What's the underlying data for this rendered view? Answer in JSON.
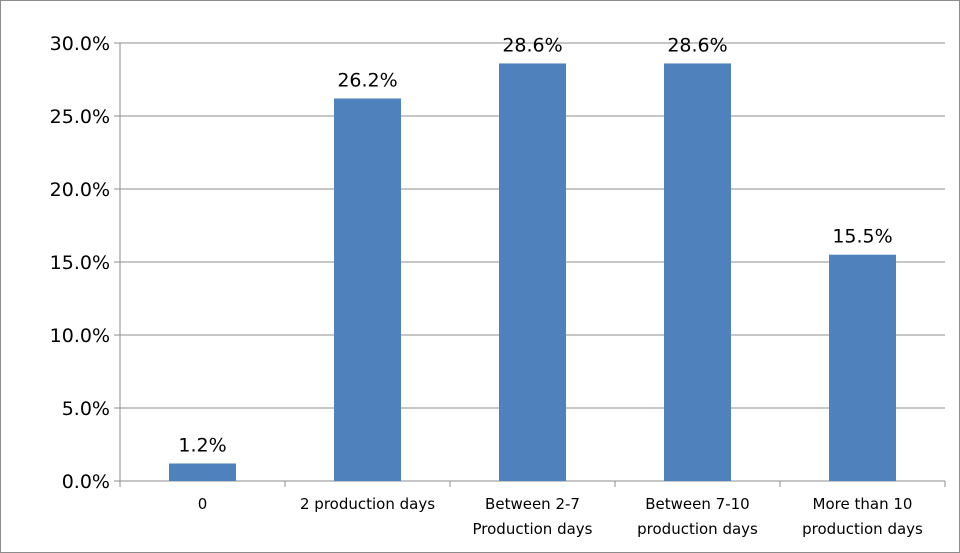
{
  "chart_data": {
    "type": "bar",
    "categories": [
      [
        "0"
      ],
      [
        "2 production days"
      ],
      [
        "Between 2-7",
        "Production days"
      ],
      [
        "Between 7-10",
        "production days"
      ],
      [
        "More than 10",
        "production days"
      ]
    ],
    "values": [
      1.2,
      26.2,
      28.6,
      28.6,
      15.5
    ],
    "data_labels": [
      "1.2%",
      "26.2%",
      "28.6%",
      "28.6%",
      "15.5%"
    ],
    "yticks": [
      "0.0%",
      "5.0%",
      "10.0%",
      "15.0%",
      "20.0%",
      "25.0%",
      "30.0%"
    ],
    "ylim": [
      0,
      30
    ],
    "title": "",
    "xlabel": "",
    "ylabel": "",
    "grid": true,
    "legend": "none",
    "bar_color": "#4f81bd"
  }
}
